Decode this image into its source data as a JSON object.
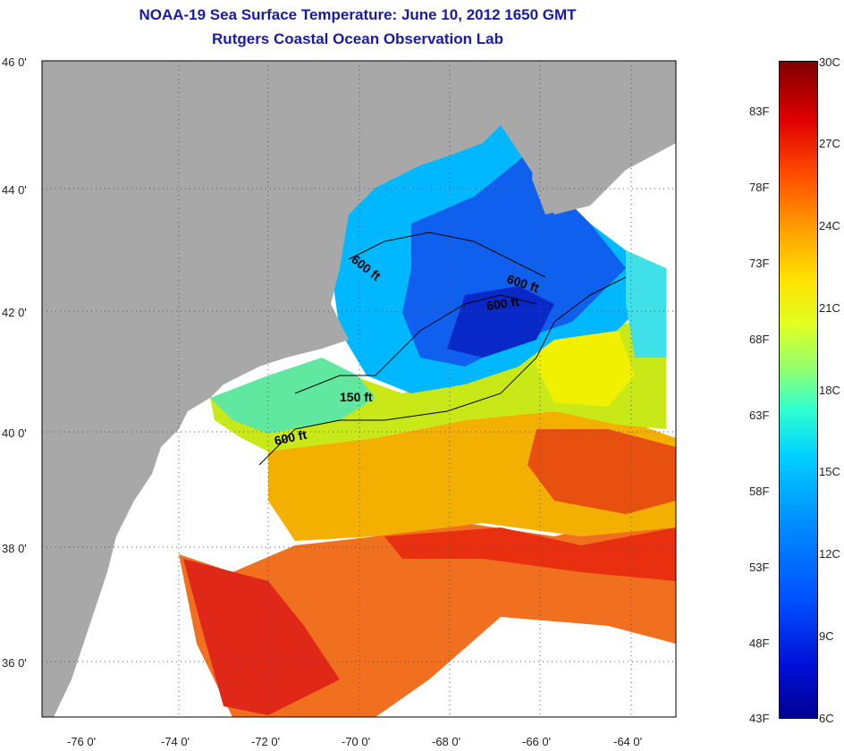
{
  "header": {
    "title": "NOAA-19 Sea Surface Temperature:  June 10, 2012 1650 GMT",
    "subtitle": "Rutgers Coastal Ocean Observation Lab"
  },
  "map": {
    "latitude_labels": [
      "46 0'",
      "44 0'",
      "42 0'",
      "40 0'",
      "38 0'",
      "36 0'"
    ],
    "longitude_labels": [
      "-76 0'",
      "-74 0'",
      "-72 0'",
      "-70 0'",
      "-68 0'",
      "-66 0'",
      "-64 0'"
    ],
    "contour_labels": [
      "600 ft",
      "600 ft",
      "600 ft",
      "150 ft",
      "600 ft"
    ],
    "colors": {
      "land": "#a8a8a8",
      "no_data": "#ffffff",
      "frame": "#000000",
      "title": "#1a1aa6"
    }
  },
  "colorbar": {
    "fahrenheit_labels": [
      "83F",
      "78F",
      "73F",
      "68F",
      "63F",
      "58F",
      "53F",
      "48F",
      "43F"
    ],
    "celsius_labels": [
      "30C",
      "27C",
      "24C",
      "21C",
      "18C",
      "15C",
      "12C",
      "9C",
      "6C"
    ]
  }
}
